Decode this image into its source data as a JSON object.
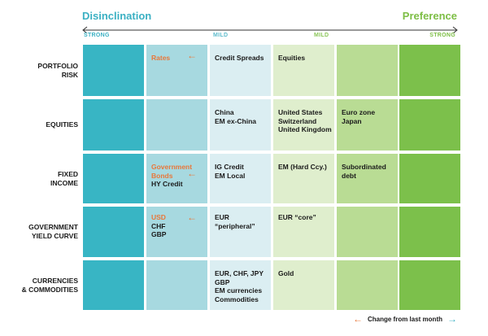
{
  "header": {
    "left": "Disinclination",
    "right": "Preference"
  },
  "scale": {
    "strong_left": "STRONG",
    "mild_left": "MILD",
    "mild_right": "MILD",
    "strong_right": "STRONG"
  },
  "rows": [
    {
      "label": [
        "PORTFOLIO",
        "RISK"
      ],
      "cells": [
        [],
        [
          {
            "text": "Rates",
            "changed": true
          }
        ],
        [
          {
            "text": "Credit Spreads"
          }
        ],
        [
          {
            "text": "Equities"
          }
        ],
        [],
        []
      ]
    },
    {
      "label": [
        "EQUITIES"
      ],
      "cells": [
        [],
        [],
        [
          {
            "text": "China"
          },
          {
            "text": "EM ex-China"
          }
        ],
        [
          {
            "text": "United States"
          },
          {
            "text": "Switzerland"
          },
          {
            "text": "United Kingdom"
          }
        ],
        [
          {
            "text": "Euro zone"
          },
          {
            "text": "Japan"
          }
        ],
        []
      ]
    },
    {
      "label": [
        "FIXED",
        "INCOME"
      ],
      "cells": [
        [],
        [
          {
            "text": "Government",
            "changed": true
          },
          {
            "text": "Bonds",
            "changed": true
          },
          {
            "text": "HY Credit"
          }
        ],
        [
          {
            "text": "IG Credit"
          },
          {
            "text": "EM Local"
          }
        ],
        [
          {
            "text": "EM (Hard Ccy.)"
          }
        ],
        [
          {
            "text": "Subordinated"
          },
          {
            "text": "debt"
          }
        ],
        []
      ]
    },
    {
      "label": [
        "GOVERNMENT",
        "YIELD CURVE"
      ],
      "cells": [
        [],
        [
          {
            "text": "USD",
            "changed": true
          },
          {
            "text": "CHF"
          },
          {
            "text": "GBP"
          }
        ],
        [
          {
            "text": "EUR"
          },
          {
            "text": "“peripheral”"
          }
        ],
        [
          {
            "text": "EUR “core”"
          }
        ],
        [],
        []
      ]
    },
    {
      "label": [
        "CURRENCIES",
        "& COMMODITIES"
      ],
      "cells": [
        [],
        [],
        [
          {
            "text": "EUR, CHF, JPY"
          },
          {
            "text": "GBP"
          },
          {
            "text": "EM currencies"
          },
          {
            "text": "Commodities"
          }
        ],
        [
          {
            "text": "Gold"
          }
        ],
        [],
        []
      ]
    }
  ],
  "legend": {
    "text": "Change from last month",
    "left_arrow": "←",
    "right_arrow": "→"
  },
  "colors": {
    "col0": "#38b5c4",
    "col1": "#a7d9e0",
    "col2": "#dbeef2",
    "col3": "#dfeecd",
    "col4": "#b9dc94",
    "col5": "#7cc04b",
    "changed": "#e8773a"
  }
}
